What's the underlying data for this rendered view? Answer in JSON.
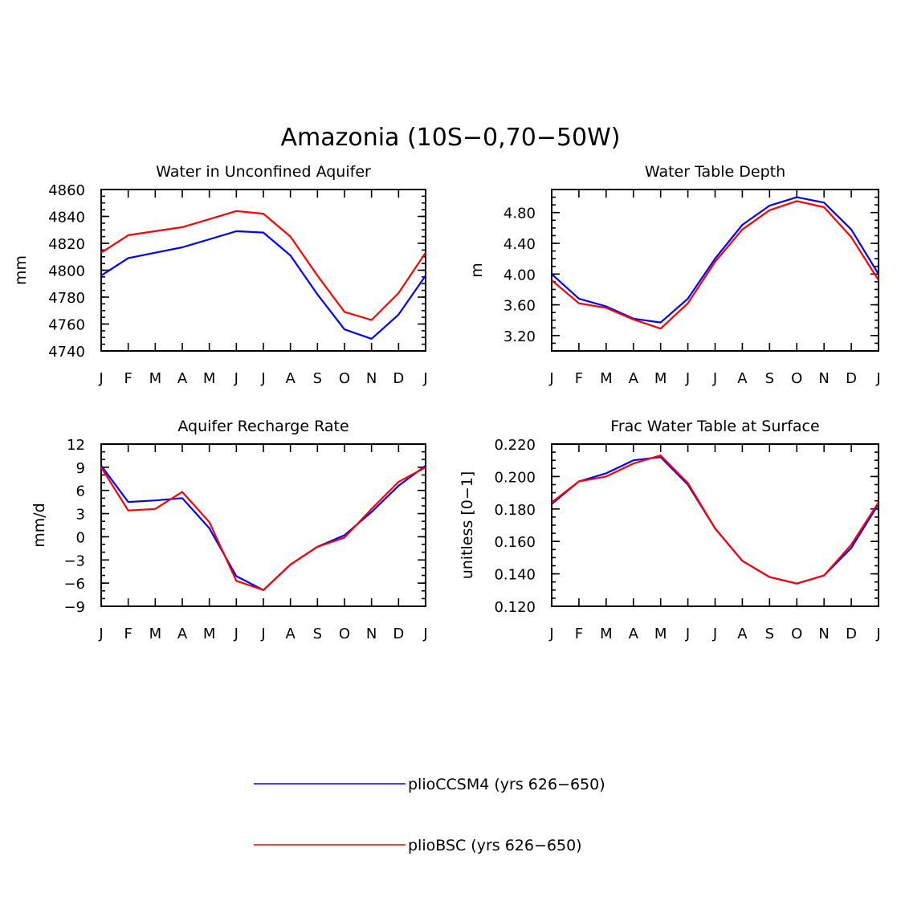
{
  "title": "Amazonia (10S−0,70−50W)",
  "legend": {
    "placement": "bottom",
    "entries": [
      {
        "label": "plioCCSM4 (yrs 626−650)",
        "color": "#0000ff"
      },
      {
        "label": "plioBSC (yrs 626−650)",
        "color": "#ff0000"
      }
    ]
  },
  "chart_data": [
    {
      "type": "line",
      "title": "Water in Unconfined Aquifer",
      "xlabel": "",
      "ylabel": "mm",
      "categories": [
        "J",
        "F",
        "M",
        "A",
        "M",
        "J",
        "J",
        "A",
        "S",
        "O",
        "N",
        "D",
        "J"
      ],
      "ylim": [
        4740,
        4860
      ],
      "yticks": [
        "4740",
        "4760",
        "4780",
        "4800",
        "4820",
        "4840",
        "4860"
      ],
      "yticks_values": [
        4740,
        4760,
        4780,
        4800,
        4820,
        4840,
        4860
      ],
      "yminor_step": 5,
      "series": [
        {
          "name": "plioCCSM4 (yrs 626−650)",
          "color": "#0000ff",
          "values": [
            4796,
            4809,
            4813,
            4817,
            4823,
            4829,
            4828,
            4811,
            4782,
            4756,
            4749,
            4767,
            4796
          ]
        },
        {
          "name": "plioBSC (yrs 626−650)",
          "color": "#ff0000",
          "values": [
            4813,
            4826,
            4829,
            4832,
            4838,
            4844,
            4842,
            4825,
            4796,
            4769,
            4763,
            4783,
            4813
          ]
        }
      ]
    },
    {
      "type": "line",
      "title": "Water Table Depth",
      "xlabel": "",
      "ylabel": "m",
      "categories": [
        "J",
        "F",
        "M",
        "A",
        "M",
        "J",
        "J",
        "A",
        "S",
        "O",
        "N",
        "D",
        "J"
      ],
      "ylim": [
        3.0,
        5.1
      ],
      "yticks": [
        "3.20",
        "3.60",
        "4.00",
        "4.40",
        "4.80"
      ],
      "yticks_values": [
        3.2,
        3.6,
        4.0,
        4.4,
        4.8
      ],
      "yminor_step": 0.1,
      "series": [
        {
          "name": "plioCCSM4 (yrs 626−650)",
          "color": "#0000ff",
          "values": [
            4.0,
            3.68,
            3.58,
            3.42,
            3.37,
            3.68,
            4.2,
            4.64,
            4.89,
            5.0,
            4.93,
            4.58,
            4.0
          ]
        },
        {
          "name": "plioBSC (yrs 626−650)",
          "color": "#ff0000",
          "values": [
            3.92,
            3.62,
            3.56,
            3.41,
            3.29,
            3.62,
            4.16,
            4.58,
            4.83,
            4.95,
            4.87,
            4.48,
            3.92
          ]
        }
      ]
    },
    {
      "type": "line",
      "title": "Aquifer Recharge Rate",
      "xlabel": "",
      "ylabel": "mm/d",
      "categories": [
        "J",
        "F",
        "M",
        "A",
        "M",
        "J",
        "J",
        "A",
        "S",
        "O",
        "N",
        "D",
        "J"
      ],
      "ylim": [
        -9,
        12
      ],
      "yticks": [
        "−9",
        "−6",
        "−3",
        "0",
        "3",
        "6",
        "9",
        "12"
      ],
      "yticks_values": [
        -9,
        -6,
        -3,
        0,
        3,
        6,
        9,
        12
      ],
      "yminor_step": 1,
      "series": [
        {
          "name": "plioCCSM4 (yrs 626−650)",
          "color": "#0000ff",
          "values": [
            9.2,
            4.5,
            4.7,
            5.0,
            1.1,
            -5.1,
            -6.9,
            -3.6,
            -1.3,
            0.2,
            3.2,
            6.6,
            9.2
          ]
        },
        {
          "name": "plioBSC (yrs 626−650)",
          "color": "#ff0000",
          "values": [
            9.0,
            3.4,
            3.6,
            5.8,
            1.9,
            -5.7,
            -6.9,
            -3.6,
            -1.3,
            -0.1,
            3.6,
            7.1,
            9.0
          ]
        }
      ]
    },
    {
      "type": "line",
      "title": "Frac Water Table at Surface",
      "xlabel": "",
      "ylabel": "unitless [0−1]",
      "categories": [
        "J",
        "F",
        "M",
        "A",
        "M",
        "J",
        "J",
        "A",
        "S",
        "O",
        "N",
        "D",
        "J"
      ],
      "ylim": [
        0.12,
        0.22
      ],
      "yticks": [
        "0.120",
        "0.140",
        "0.160",
        "0.180",
        "0.200",
        "0.220"
      ],
      "yticks_values": [
        0.12,
        0.14,
        0.16,
        0.18,
        0.2,
        0.22
      ],
      "yminor_step": 0.005,
      "series": [
        {
          "name": "plioCCSM4 (yrs 626−650)",
          "color": "#0000ff",
          "values": [
            0.183,
            0.197,
            0.202,
            0.21,
            0.212,
            0.195,
            0.168,
            0.148,
            0.138,
            0.134,
            0.139,
            0.156,
            0.183
          ]
        },
        {
          "name": "plioBSC (yrs 626−650)",
          "color": "#ff0000",
          "values": [
            0.184,
            0.197,
            0.2,
            0.208,
            0.213,
            0.196,
            0.168,
            0.148,
            0.138,
            0.134,
            0.139,
            0.158,
            0.184
          ]
        }
      ]
    }
  ]
}
